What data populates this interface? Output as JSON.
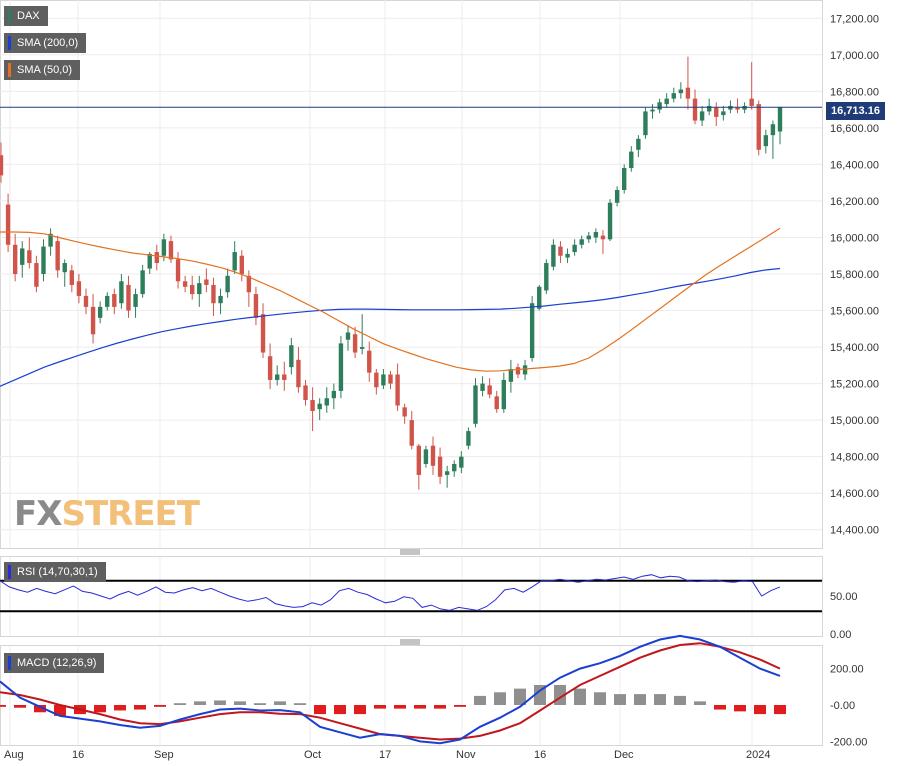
{
  "legend": {
    "instrument": {
      "label": "DAX",
      "color": "#2e7d5b"
    },
    "sma200": {
      "label": "SMA (200,0)",
      "color": "#1a3fd1"
    },
    "sma50": {
      "label": "SMA (50,0)",
      "color": "#e37222"
    },
    "rsi": {
      "label": "RSI (14,70,30,1)",
      "color": "#2a2ad8"
    },
    "macd": {
      "label": "MACD (12,26,9)",
      "color": "#1a3fd1"
    }
  },
  "watermark": {
    "fx": "FX",
    "street": "STREET"
  },
  "last_price_label": "16,713.16",
  "colors": {
    "up": "#2e7d5b",
    "down": "#d0544a",
    "grid": "#ececec",
    "last_price_line": "#1f3c78",
    "macd_line": "#1a3fd1",
    "signal_line": "#c0171c",
    "hist_pos": "#8f8f8f",
    "hist_neg": "#e01c1c"
  },
  "chart_data": [
    {
      "type": "candlestick",
      "title": "DAX",
      "y_ticks": [
        "14,400.00",
        "14,600.00",
        "14,800.00",
        "15,000.00",
        "15,200.00",
        "15,400.00",
        "15,600.00",
        "15,800.00",
        "16,000.00",
        "16,200.00",
        "16,400.00",
        "16,600.00",
        "16,800.00",
        "17,000.00",
        "17,200.00"
      ],
      "x_ticks": [
        "Aug",
        "16",
        "Sep",
        "Oct",
        "17",
        "Nov",
        "16",
        "Dec",
        "2024"
      ],
      "ylim": [
        14300,
        17300
      ],
      "last_price": 16713.16,
      "grid": true,
      "candles": [
        {
          "o": 16450,
          "h": 16520,
          "l": 16300,
          "c": 16340
        },
        {
          "o": 16180,
          "h": 16240,
          "l": 15920,
          "c": 15960
        },
        {
          "o": 15960,
          "h": 16020,
          "l": 15760,
          "c": 15800
        },
        {
          "o": 15850,
          "h": 15980,
          "l": 15780,
          "c": 15940
        },
        {
          "o": 15930,
          "h": 16000,
          "l": 15830,
          "c": 15860
        },
        {
          "o": 15860,
          "h": 15900,
          "l": 15700,
          "c": 15730
        },
        {
          "o": 15800,
          "h": 15990,
          "l": 15760,
          "c": 15950
        },
        {
          "o": 15950,
          "h": 16050,
          "l": 15900,
          "c": 16020
        },
        {
          "o": 15980,
          "h": 16010,
          "l": 15780,
          "c": 15820
        },
        {
          "o": 15810,
          "h": 15880,
          "l": 15730,
          "c": 15860
        },
        {
          "o": 15820,
          "h": 15850,
          "l": 15700,
          "c": 15740
        },
        {
          "o": 15760,
          "h": 15800,
          "l": 15640,
          "c": 15680
        },
        {
          "o": 15680,
          "h": 15720,
          "l": 15580,
          "c": 15620
        },
        {
          "o": 15620,
          "h": 15690,
          "l": 15420,
          "c": 15470
        },
        {
          "o": 15560,
          "h": 15650,
          "l": 15530,
          "c": 15620
        },
        {
          "o": 15620,
          "h": 15700,
          "l": 15600,
          "c": 15680
        },
        {
          "o": 15690,
          "h": 15720,
          "l": 15580,
          "c": 15620
        },
        {
          "o": 15640,
          "h": 15800,
          "l": 15610,
          "c": 15760
        },
        {
          "o": 15740,
          "h": 15790,
          "l": 15560,
          "c": 15600
        },
        {
          "o": 15620,
          "h": 15720,
          "l": 15560,
          "c": 15690
        },
        {
          "o": 15690,
          "h": 15850,
          "l": 15670,
          "c": 15820
        },
        {
          "o": 15830,
          "h": 15920,
          "l": 15800,
          "c": 15910
        },
        {
          "o": 15920,
          "h": 15960,
          "l": 15820,
          "c": 15860
        },
        {
          "o": 15900,
          "h": 16020,
          "l": 15870,
          "c": 15990
        },
        {
          "o": 15980,
          "h": 16010,
          "l": 15860,
          "c": 15880
        },
        {
          "o": 15880,
          "h": 15920,
          "l": 15720,
          "c": 15760
        },
        {
          "o": 15760,
          "h": 15790,
          "l": 15700,
          "c": 15730
        },
        {
          "o": 15740,
          "h": 15790,
          "l": 15660,
          "c": 15690
        },
        {
          "o": 15690,
          "h": 15790,
          "l": 15620,
          "c": 15750
        },
        {
          "o": 15770,
          "h": 15830,
          "l": 15700,
          "c": 15740
        },
        {
          "o": 15740,
          "h": 15780,
          "l": 15570,
          "c": 15640
        },
        {
          "o": 15640,
          "h": 15720,
          "l": 15580,
          "c": 15680
        },
        {
          "o": 15700,
          "h": 15830,
          "l": 15670,
          "c": 15790
        },
        {
          "o": 15820,
          "h": 15980,
          "l": 15800,
          "c": 15920
        },
        {
          "o": 15900,
          "h": 15930,
          "l": 15760,
          "c": 15800
        },
        {
          "o": 15790,
          "h": 15820,
          "l": 15620,
          "c": 15700
        },
        {
          "o": 15690,
          "h": 15730,
          "l": 15520,
          "c": 15560
        },
        {
          "o": 15580,
          "h": 15640,
          "l": 15340,
          "c": 15370
        },
        {
          "o": 15350,
          "h": 15420,
          "l": 15170,
          "c": 15220
        },
        {
          "o": 15220,
          "h": 15300,
          "l": 15190,
          "c": 15250
        },
        {
          "o": 15250,
          "h": 15320,
          "l": 15160,
          "c": 15220
        },
        {
          "o": 15290,
          "h": 15450,
          "l": 15250,
          "c": 15410
        },
        {
          "o": 15330,
          "h": 15400,
          "l": 15150,
          "c": 15180
        },
        {
          "o": 15190,
          "h": 15220,
          "l": 15080,
          "c": 15110
        },
        {
          "o": 15110,
          "h": 15180,
          "l": 14940,
          "c": 15050
        },
        {
          "o": 15060,
          "h": 15120,
          "l": 15000,
          "c": 15090
        },
        {
          "o": 15080,
          "h": 15180,
          "l": 15040,
          "c": 15120
        },
        {
          "o": 15120,
          "h": 15200,
          "l": 15060,
          "c": 15160
        },
        {
          "o": 15160,
          "h": 15460,
          "l": 15120,
          "c": 15420
        },
        {
          "o": 15440,
          "h": 15520,
          "l": 15380,
          "c": 15480
        },
        {
          "o": 15470,
          "h": 15510,
          "l": 15340,
          "c": 15370
        },
        {
          "o": 15390,
          "h": 15580,
          "l": 15360,
          "c": 15400
        },
        {
          "o": 15380,
          "h": 15430,
          "l": 15210,
          "c": 15260
        },
        {
          "o": 15260,
          "h": 15280,
          "l": 15140,
          "c": 15180
        },
        {
          "o": 15190,
          "h": 15280,
          "l": 15170,
          "c": 15250
        },
        {
          "o": 15250,
          "h": 15270,
          "l": 15170,
          "c": 15200
        },
        {
          "o": 15250,
          "h": 15310,
          "l": 15050,
          "c": 15080
        },
        {
          "o": 15070,
          "h": 15090,
          "l": 14980,
          "c": 15020
        },
        {
          "o": 15000,
          "h": 15050,
          "l": 14840,
          "c": 14860
        },
        {
          "o": 14860,
          "h": 14870,
          "l": 14620,
          "c": 14700
        },
        {
          "o": 14760,
          "h": 14860,
          "l": 14740,
          "c": 14840
        },
        {
          "o": 14860,
          "h": 14910,
          "l": 14700,
          "c": 14750
        },
        {
          "o": 14800,
          "h": 14850,
          "l": 14650,
          "c": 14690
        },
        {
          "o": 14700,
          "h": 14750,
          "l": 14630,
          "c": 14720
        },
        {
          "o": 14720,
          "h": 14780,
          "l": 14690,
          "c": 14760
        },
        {
          "o": 14740,
          "h": 14830,
          "l": 14710,
          "c": 14800
        },
        {
          "o": 14860,
          "h": 14960,
          "l": 14840,
          "c": 14940
        },
        {
          "o": 14980,
          "h": 15230,
          "l": 14960,
          "c": 15190
        },
        {
          "o": 15160,
          "h": 15240,
          "l": 15130,
          "c": 15200
        },
        {
          "o": 15190,
          "h": 15230,
          "l": 15120,
          "c": 15140
        },
        {
          "o": 15130,
          "h": 15160,
          "l": 15040,
          "c": 15060
        },
        {
          "o": 15060,
          "h": 15260,
          "l": 15040,
          "c": 15220
        },
        {
          "o": 15210,
          "h": 15330,
          "l": 15150,
          "c": 15280
        },
        {
          "o": 15290,
          "h": 15310,
          "l": 15230,
          "c": 15250
        },
        {
          "o": 15250,
          "h": 15330,
          "l": 15220,
          "c": 15300
        },
        {
          "o": 15340,
          "h": 15680,
          "l": 15320,
          "c": 15640
        },
        {
          "o": 15610,
          "h": 15740,
          "l": 15600,
          "c": 15730
        },
        {
          "o": 15710,
          "h": 15880,
          "l": 15690,
          "c": 15860
        },
        {
          "o": 15840,
          "h": 15990,
          "l": 15820,
          "c": 15960
        },
        {
          "o": 15950,
          "h": 15980,
          "l": 15860,
          "c": 15900
        },
        {
          "o": 15890,
          "h": 15940,
          "l": 15860,
          "c": 15910
        },
        {
          "o": 15920,
          "h": 15990,
          "l": 15900,
          "c": 15960
        },
        {
          "o": 15960,
          "h": 16010,
          "l": 15940,
          "c": 15990
        },
        {
          "o": 15990,
          "h": 16030,
          "l": 15970,
          "c": 16010
        },
        {
          "o": 16000,
          "h": 16050,
          "l": 15970,
          "c": 16030
        },
        {
          "o": 16010,
          "h": 16040,
          "l": 15910,
          "c": 15990
        },
        {
          "o": 15990,
          "h": 16210,
          "l": 15980,
          "c": 16190
        },
        {
          "o": 16190,
          "h": 16280,
          "l": 16170,
          "c": 16260
        },
        {
          "o": 16260,
          "h": 16400,
          "l": 16240,
          "c": 16380
        },
        {
          "o": 16380,
          "h": 16500,
          "l": 16360,
          "c": 16470
        },
        {
          "o": 16480,
          "h": 16560,
          "l": 16440,
          "c": 16540
        },
        {
          "o": 16560,
          "h": 16710,
          "l": 16540,
          "c": 16690
        },
        {
          "o": 16690,
          "h": 16730,
          "l": 16650,
          "c": 16700
        },
        {
          "o": 16700,
          "h": 16760,
          "l": 16680,
          "c": 16740
        },
        {
          "o": 16730,
          "h": 16790,
          "l": 16710,
          "c": 16760
        },
        {
          "o": 16760,
          "h": 16820,
          "l": 16740,
          "c": 16790
        },
        {
          "o": 16790,
          "h": 16850,
          "l": 16760,
          "c": 16810
        },
        {
          "o": 16820,
          "h": 16990,
          "l": 16700,
          "c": 16760
        },
        {
          "o": 16760,
          "h": 16810,
          "l": 16620,
          "c": 16640
        },
        {
          "o": 16640,
          "h": 16720,
          "l": 16610,
          "c": 16690
        },
        {
          "o": 16690,
          "h": 16760,
          "l": 16670,
          "c": 16720
        },
        {
          "o": 16710,
          "h": 16740,
          "l": 16610,
          "c": 16660
        },
        {
          "o": 16670,
          "h": 16720,
          "l": 16640,
          "c": 16690
        },
        {
          "o": 16700,
          "h": 16750,
          "l": 16680,
          "c": 16720
        },
        {
          "o": 16710,
          "h": 16760,
          "l": 16680,
          "c": 16700
        },
        {
          "o": 16700,
          "h": 16740,
          "l": 16680,
          "c": 16720
        },
        {
          "o": 16760,
          "h": 16960,
          "l": 16700,
          "c": 16720
        },
        {
          "o": 16730,
          "h": 16750,
          "l": 16450,
          "c": 16480
        },
        {
          "o": 16500,
          "h": 16590,
          "l": 16460,
          "c": 16560
        },
        {
          "o": 16560,
          "h": 16640,
          "l": 16430,
          "c": 16620
        },
        {
          "o": 16580,
          "h": 16700,
          "l": 16510,
          "c": 16713
        }
      ],
      "sma200": [
        15185,
        15220,
        15255,
        15290,
        15318,
        15345,
        15372,
        15398,
        15422,
        15444,
        15465,
        15484,
        15500,
        15515,
        15528,
        15540,
        15552,
        15562,
        15571,
        15580,
        15588,
        15596,
        15602,
        15606,
        15608,
        15608,
        15606,
        15605,
        15604,
        15604,
        15604,
        15604,
        15605,
        15606,
        15608,
        15612,
        15618,
        15625,
        15634,
        15642,
        15650,
        15660,
        15672,
        15686,
        15700,
        15716,
        15732,
        15746,
        15760,
        15774,
        15790,
        15808,
        15822,
        15830
      ],
      "sma50": [
        16030,
        16030,
        16028,
        16020,
        16000,
        15980,
        15962,
        15945,
        15930,
        15915,
        15905,
        15895,
        15885,
        15872,
        15855,
        15835,
        15810,
        15780,
        15745,
        15710,
        15670,
        15630,
        15590,
        15545,
        15500,
        15460,
        15420,
        15390,
        15362,
        15335,
        15312,
        15290,
        15275,
        15268,
        15270,
        15276,
        15282,
        15288,
        15296,
        15310,
        15340,
        15388,
        15442,
        15500,
        15560,
        15620,
        15680,
        15740,
        15798,
        15850,
        15900,
        15950,
        16000,
        16050
      ],
      "rsi": [
        70,
        62,
        58,
        55,
        60,
        56,
        53,
        58,
        63,
        56,
        54,
        50,
        46,
        52,
        56,
        51,
        56,
        62,
        55,
        54,
        58,
        61,
        57,
        60,
        55,
        50,
        46,
        43,
        45,
        48,
        40,
        37,
        35,
        36,
        41,
        38,
        45,
        57,
        60,
        55,
        52,
        46,
        41,
        43,
        49,
        47,
        35,
        38,
        33,
        31,
        35,
        33,
        31,
        36,
        45,
        58,
        60,
        55,
        62,
        70,
        70,
        72,
        70,
        68,
        70,
        72,
        71,
        73,
        75,
        72,
        76,
        78,
        74,
        76,
        75,
        70,
        69,
        70,
        71,
        69,
        68,
        70,
        69,
        50,
        57,
        62
      ],
      "macd": {
        "macd": [
          130,
          40,
          -10,
          -60,
          -75,
          -90,
          -110,
          -125,
          -115,
          -80,
          -50,
          -25,
          -20,
          -30,
          -28,
          -40,
          -120,
          -150,
          -180,
          -160,
          -170,
          -200,
          -210,
          -190,
          -120,
          -70,
          -10,
          80,
          150,
          200,
          230,
          270,
          320,
          360,
          380,
          360,
          320,
          260,
          200,
          160
        ],
        "signal": [
          70,
          55,
          30,
          0,
          -25,
          -50,
          -80,
          -100,
          -105,
          -90,
          -70,
          -50,
          -40,
          -40,
          -48,
          -50,
          -70,
          -100,
          -130,
          -160,
          -170,
          -180,
          -190,
          -185,
          -170,
          -140,
          -100,
          -30,
          40,
          110,
          160,
          210,
          260,
          300,
          330,
          340,
          320,
          290,
          250,
          200
        ],
        "hist_pos": [
          0,
          0,
          0,
          0,
          0,
          0,
          0,
          0,
          0,
          10,
          20,
          25,
          20,
          10,
          20,
          10,
          0,
          0,
          0,
          0,
          0,
          0,
          0,
          0,
          50,
          70,
          90,
          110,
          110,
          90,
          70,
          60,
          60,
          60,
          50,
          20,
          0,
          0,
          0,
          0
        ],
        "hist_neg": [
          -10,
          -15,
          -40,
          -60,
          -50,
          -40,
          -30,
          -25,
          -10,
          0,
          0,
          0,
          0,
          0,
          0,
          0,
          -50,
          -50,
          -50,
          -20,
          -20,
          -20,
          -20,
          -10,
          0,
          0,
          0,
          0,
          0,
          0,
          0,
          0,
          0,
          0,
          0,
          0,
          -25,
          -35,
          -50,
          -50
        ]
      },
      "rsi_levels": [
        70,
        30
      ],
      "rsi_ticks": [
        "50.00",
        "0.00"
      ],
      "macd_ticks": [
        "200.00",
        "-0.00",
        "-200.00"
      ]
    }
  ]
}
